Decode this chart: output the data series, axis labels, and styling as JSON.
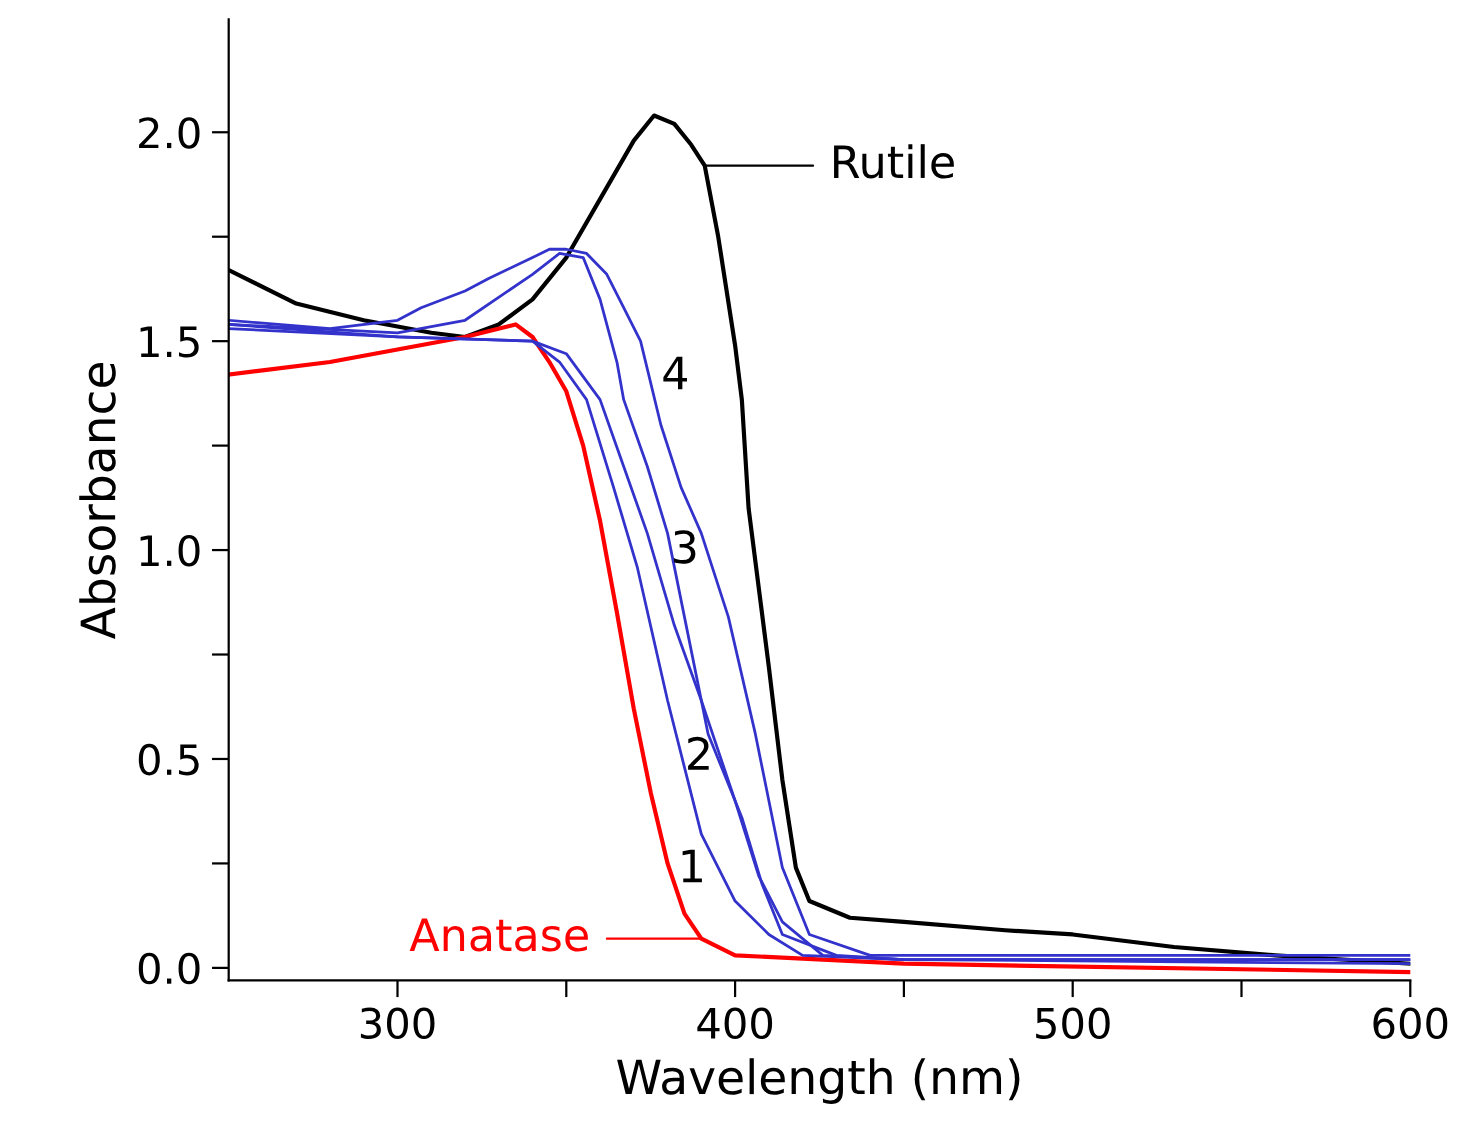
{
  "chart_data": {
    "type": "line",
    "xlabel": "Wavelength (nm)",
    "ylabel": "Absorbance",
    "xlim": [
      250,
      600
    ],
    "ylim": [
      -0.03,
      2.27
    ],
    "xticks": [
      300,
      {
        "value": 350,
        "label": null
      },
      400,
      {
        "value": 450,
        "label": null
      },
      500,
      {
        "value": 550,
        "label": null
      },
      600
    ],
    "yticks": [
      "0.0",
      {
        "value": 0.25,
        "label": null
      },
      {
        "value": 0.5,
        "label": "0.5"
      },
      {
        "value": 0.75,
        "label": null
      },
      {
        "value": 1.0,
        "label": "1.0"
      },
      {
        "value": 1.25,
        "label": null
      },
      {
        "value": 1.5,
        "label": "1.5"
      },
      {
        "value": 1.75,
        "label": null
      },
      {
        "value": 2.0,
        "label": "2.0"
      }
    ],
    "grid": false,
    "marker": "none",
    "line_style": "solid",
    "series": [
      {
        "name": "Rutile",
        "color": "#000000",
        "x": [
          250,
          270,
          290,
          310,
          320,
          330,
          340,
          350,
          360,
          370,
          376,
          382,
          387,
          391,
          395,
          400,
          402,
          404,
          410,
          414,
          418,
          422,
          434,
          450,
          480,
          500,
          530,
          560,
          600
        ],
        "values": [
          1.67,
          1.59,
          1.55,
          1.52,
          1.51,
          1.54,
          1.6,
          1.7,
          1.84,
          1.98,
          2.04,
          2.02,
          1.97,
          1.92,
          1.75,
          1.49,
          1.36,
          1.1,
          0.72,
          0.45,
          0.24,
          0.16,
          0.12,
          0.11,
          0.09,
          0.08,
          0.05,
          0.03,
          0.01
        ]
      },
      {
        "name": "Anatase",
        "color": "#ff0000",
        "x": [
          250,
          260,
          280,
          300,
          320,
          335,
          340,
          345,
          350,
          355,
          360,
          365,
          370,
          375,
          380,
          385,
          390,
          400,
          450,
          600
        ],
        "values": [
          1.42,
          1.43,
          1.45,
          1.48,
          1.51,
          1.54,
          1.51,
          1.45,
          1.38,
          1.25,
          1.07,
          0.85,
          0.62,
          0.42,
          0.25,
          0.13,
          0.07,
          0.03,
          0.01,
          -0.01
        ]
      },
      {
        "color": "#3333cc",
        "x": [
          250,
          300,
          340,
          348,
          356,
          364,
          371,
          380,
          390,
          400,
          410,
          420,
          450,
          600
        ],
        "values": [
          1.53,
          1.51,
          1.5,
          1.45,
          1.36,
          1.15,
          0.96,
          0.64,
          0.32,
          0.16,
          0.08,
          0.03,
          0.02,
          0.01
        ]
      },
      {
        "color": "#3333cc",
        "x": [
          250,
          300,
          340,
          350,
          360,
          367,
          374,
          382,
          390,
          400,
          407,
          414,
          426,
          450,
          600
        ],
        "values": [
          1.54,
          1.51,
          1.5,
          1.47,
          1.36,
          1.2,
          1.04,
          0.82,
          0.64,
          0.4,
          0.22,
          0.11,
          0.03,
          0.02,
          0.02
        ]
      },
      {
        "color": "#3333cc",
        "x": [
          250,
          300,
          320,
          340,
          348,
          355,
          360,
          365,
          367,
          374,
          380,
          386,
          392,
          402,
          408,
          414,
          430,
          450,
          600
        ],
        "values": [
          1.54,
          1.52,
          1.55,
          1.66,
          1.71,
          1.7,
          1.6,
          1.45,
          1.36,
          1.2,
          1.04,
          0.8,
          0.56,
          0.36,
          0.2,
          0.08,
          0.03,
          0.02,
          0.02
        ]
      },
      {
        "color": "#3333cc",
        "x": [
          250,
          280,
          300,
          307,
          320,
          327,
          340,
          345,
          350,
          356,
          362,
          367,
          372,
          378,
          384,
          390,
          398,
          406,
          414,
          422,
          440,
          600
        ],
        "values": [
          1.55,
          1.53,
          1.55,
          1.58,
          1.62,
          1.65,
          1.7,
          1.72,
          1.72,
          1.71,
          1.66,
          1.58,
          1.5,
          1.3,
          1.15,
          1.04,
          0.84,
          0.56,
          0.24,
          0.08,
          0.03,
          0.03
        ]
      }
    ],
    "annotations": [
      "1",
      "2",
      "3",
      "4"
    ]
  }
}
